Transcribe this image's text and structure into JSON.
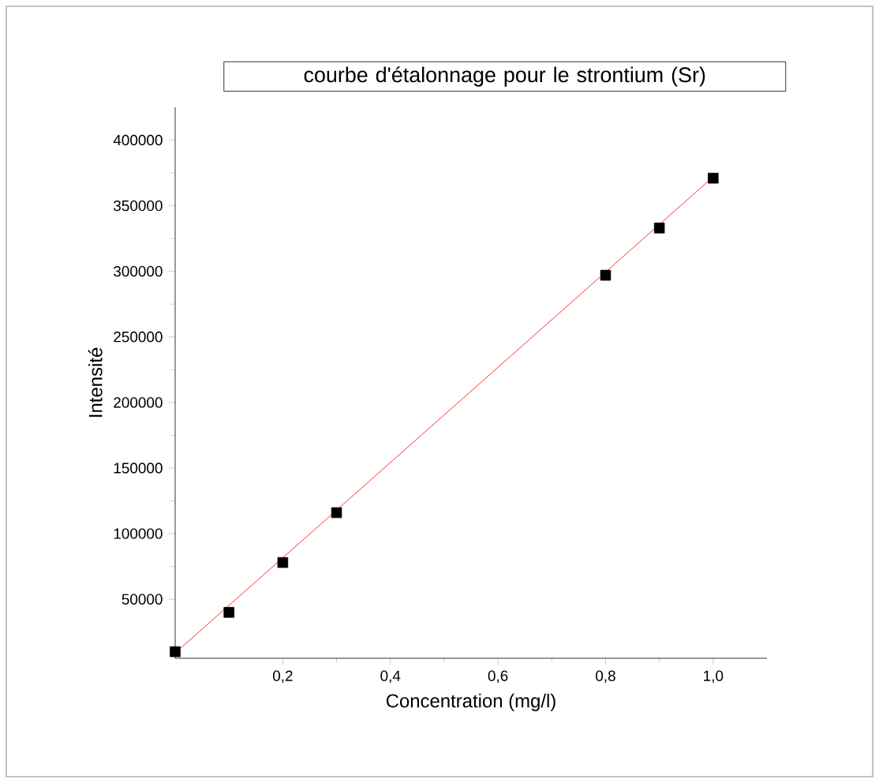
{
  "chart_data": {
    "type": "scatter",
    "title": "courbe d'étalonnage pour le strontium (Sr)",
    "xlabel": "Concentration (mg/l)",
    "ylabel": "Intensité",
    "xlim": [
      0,
      1.1
    ],
    "ylim": [
      5000,
      425000
    ],
    "xticks": [
      {
        "value": 0.2,
        "label": "0,2"
      },
      {
        "value": 0.4,
        "label": "0,4"
      },
      {
        "value": 0.6,
        "label": "0,6"
      },
      {
        "value": 0.8,
        "label": "0,8"
      },
      {
        "value": 1.0,
        "label": "1,0"
      }
    ],
    "yticks": [
      50000,
      100000,
      150000,
      200000,
      250000,
      300000,
      350000,
      400000
    ],
    "grid": false,
    "series": [
      {
        "marker": "square",
        "color": "#000000",
        "x": [
          0,
          0.1,
          0.2,
          0.3,
          0.8,
          0.9,
          1.0
        ],
        "values": [
          10000,
          40000,
          78000,
          116000,
          297000,
          333000,
          371000
        ]
      },
      {
        "type": "line",
        "marker": "none",
        "line_style": "solid",
        "color": "#ff0000",
        "x": [
          0,
          1.0
        ],
        "values": [
          9000,
          372000
        ]
      }
    ]
  }
}
